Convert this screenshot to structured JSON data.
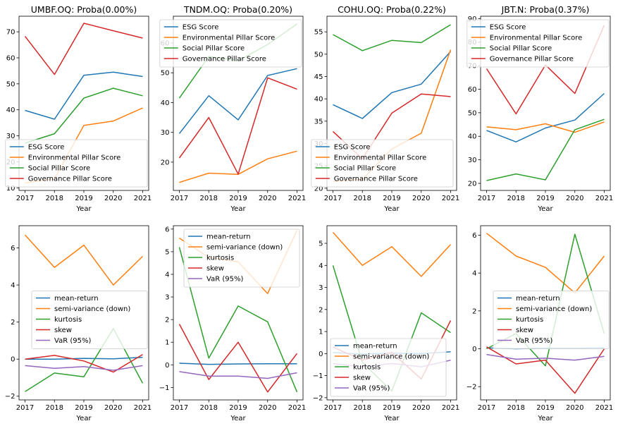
{
  "colors": {
    "blue": "#1f77b4",
    "orange": "#ff7f0e",
    "green": "#2ca02c",
    "red": "#d62728",
    "purple": "#9467bd"
  },
  "chart_data": [
    {
      "type": "line",
      "title": "UMBF.OQ: Proba(0.00%)",
      "xlabel": "Year",
      "ylabel": "",
      "x": [
        "2017",
        "2018",
        "2019",
        "2020",
        "2021"
      ],
      "yticks": [
        10,
        20,
        30,
        40,
        50,
        60,
        70
      ],
      "ylim": [
        9,
        76
      ],
      "legend": "lower left",
      "series": [
        {
          "name": "ESG Score",
          "color": "blue",
          "values": [
            39.8,
            36.4,
            53.3,
            54.5,
            52.8
          ]
        },
        {
          "name": "Environmental Pillar Score",
          "color": "orange",
          "values": [
            11.9,
            13.5,
            34.0,
            35.7,
            40.7
          ]
        },
        {
          "name": "Social Pillar Score",
          "color": "green",
          "values": [
            27.2,
            30.8,
            44.5,
            48.3,
            45.4
          ]
        },
        {
          "name": "Governance Pillar Score",
          "color": "red",
          "values": [
            68.3,
            53.6,
            73.3,
            70.4,
            67.6
          ]
        }
      ]
    },
    {
      "type": "line",
      "title": "TNDM.OQ: Proba(0.20%)",
      "xlabel": "Year",
      "ylabel": "",
      "x": [
        "2017",
        "2018",
        "2019",
        "2020",
        "2021"
      ],
      "yticks": [
        20,
        30,
        40,
        50,
        60
      ],
      "ylim": [
        10.5,
        69
      ],
      "legend": "upper left",
      "series": [
        {
          "name": "ESG Score",
          "color": "blue",
          "values": [
            29.6,
            42.3,
            34.2,
            49.1,
            51.4
          ]
        },
        {
          "name": "Environmental Pillar Score",
          "color": "orange",
          "values": [
            13.2,
            16.3,
            15.9,
            21.1,
            23.7
          ]
        },
        {
          "name": "Social Pillar Score",
          "color": "green",
          "values": [
            41.5,
            55.5,
            54.0,
            59.5,
            66.4
          ]
        },
        {
          "name": "Governance Pillar Score",
          "color": "red",
          "values": [
            21.4,
            35.0,
            16.0,
            48.3,
            44.5
          ]
        }
      ]
    },
    {
      "type": "line",
      "title": "COHU.OQ: Proba(0.22%)",
      "xlabel": "Year",
      "ylabel": "",
      "x": [
        "2017",
        "2018",
        "2019",
        "2020",
        "2021"
      ],
      "yticks": [
        20,
        25,
        30,
        35,
        40,
        45,
        50,
        55
      ],
      "ylim": [
        19.5,
        58.5
      ],
      "legend": "lower right",
      "series": [
        {
          "name": "ESG Score",
          "color": "blue",
          "values": [
            38.7,
            35.6,
            41.4,
            43.3,
            50.6
          ]
        },
        {
          "name": "Environmental Pillar Score",
          "color": "orange",
          "values": [
            21.5,
            22.0,
            28.8,
            32.3,
            51.0
          ]
        },
        {
          "name": "Social Pillar Score",
          "color": "green",
          "values": [
            54.4,
            50.8,
            53.1,
            52.6,
            56.6
          ]
        },
        {
          "name": "Governance Pillar Score",
          "color": "red",
          "values": [
            32.7,
            26.6,
            36.8,
            41.1,
            40.5
          ]
        }
      ]
    },
    {
      "type": "line",
      "title": "JBT.N: Proba(0.37%)",
      "xlabel": "Year",
      "ylabel": "",
      "x": [
        "2017",
        "2018",
        "2019",
        "2020",
        "2021"
      ],
      "yticks": [
        20,
        30,
        40,
        50,
        60,
        70,
        80,
        90
      ],
      "ylim": [
        17,
        91
      ],
      "legend": "upper left",
      "series": [
        {
          "name": "ESG Score",
          "color": "blue",
          "values": [
            42.5,
            37.6,
            43.5,
            46.9,
            58.2
          ]
        },
        {
          "name": "Environmental Pillar Score",
          "color": "orange",
          "values": [
            44.0,
            42.8,
            45.3,
            41.7,
            46.1
          ]
        },
        {
          "name": "Social Pillar Score",
          "color": "green",
          "values": [
            21.2,
            24.0,
            21.5,
            42.8,
            47.2
          ]
        },
        {
          "name": "Governance Pillar Score",
          "color": "red",
          "values": [
            68.7,
            49.5,
            70.3,
            58.2,
            87.2
          ]
        }
      ]
    },
    {
      "type": "line",
      "title": "",
      "xlabel": "Year",
      "ylabel": "",
      "x": [
        "2017",
        "2018",
        "2019",
        "2020",
        "2021"
      ],
      "yticks": [
        -2,
        0,
        2,
        4,
        6
      ],
      "ylim": [
        -2.2,
        7.2
      ],
      "legend": "center left",
      "series": [
        {
          "name": "mean-return",
          "color": "blue",
          "values": [
            0.0,
            0.0,
            0.04,
            0.02,
            0.1
          ]
        },
        {
          "name": "semi-variance (down)",
          "color": "orange",
          "values": [
            6.7,
            4.95,
            6.15,
            4.0,
            5.55
          ]
        },
        {
          "name": "kurtosis",
          "color": "green",
          "values": [
            -1.75,
            -0.75,
            -0.95,
            1.65,
            -1.3
          ]
        },
        {
          "name": "skew",
          "color": "red",
          "values": [
            0.0,
            0.2,
            -0.1,
            -0.7,
            0.25
          ]
        },
        {
          "name": "VaR (95%)",
          "color": "purple",
          "values": [
            -0.35,
            -0.5,
            -0.4,
            -0.6,
            -0.35
          ]
        }
      ]
    },
    {
      "type": "line",
      "title": "",
      "xlabel": "Year",
      "ylabel": "",
      "x": [
        "2017",
        "2018",
        "2019",
        "2020",
        "2021"
      ],
      "yticks": [
        -1,
        0,
        1,
        2,
        3,
        4,
        5,
        6
      ],
      "ylim": [
        -1.55,
        6.15
      ],
      "legend": "upper right",
      "series": [
        {
          "name": "mean-return",
          "color": "blue",
          "values": [
            0.07,
            0.02,
            0.04,
            0.05,
            0.05
          ]
        },
        {
          "name": "semi-variance (down)",
          "color": "orange",
          "values": [
            5.6,
            4.75,
            4.55,
            3.15,
            5.95
          ]
        },
        {
          "name": "kurtosis",
          "color": "green",
          "values": [
            5.2,
            0.3,
            2.6,
            1.9,
            -1.2
          ]
        },
        {
          "name": "skew",
          "color": "red",
          "values": [
            1.8,
            -0.65,
            1.0,
            -1.2,
            0.5
          ]
        },
        {
          "name": "VaR (95%)",
          "color": "purple",
          "values": [
            -0.3,
            -0.5,
            -0.5,
            -0.6,
            -0.35
          ]
        }
      ]
    },
    {
      "type": "line",
      "title": "",
      "xlabel": "Year",
      "ylabel": "",
      "x": [
        "2017",
        "2018",
        "2019",
        "2020",
        "2021"
      ],
      "yticks": [
        -2,
        -1,
        0,
        1,
        2,
        3,
        4,
        5
      ],
      "ylim": [
        -2.1,
        5.8
      ],
      "legend": "lower left",
      "series": [
        {
          "name": "mean-return",
          "color": "blue",
          "values": [
            0.05,
            -0.02,
            0.02,
            0.0,
            0.08
          ]
        },
        {
          "name": "semi-variance (down)",
          "color": "orange",
          "values": [
            5.5,
            4.0,
            4.85,
            3.5,
            4.95
          ]
        },
        {
          "name": "kurtosis",
          "color": "green",
          "values": [
            4.0,
            -0.4,
            -1.7,
            1.85,
            0.95
          ]
        },
        {
          "name": "skew",
          "color": "red",
          "values": [
            0.3,
            -0.3,
            0.05,
            -1.15,
            1.5
          ]
        },
        {
          "name": "VaR (95%)",
          "color": "purple",
          "values": [
            -0.45,
            -0.6,
            -0.45,
            -0.6,
            -0.3
          ]
        }
      ]
    },
    {
      "type": "line",
      "title": "",
      "xlabel": "Year",
      "ylabel": "",
      "x": [
        "2017",
        "2018",
        "2019",
        "2020",
        "2021"
      ],
      "yticks": [
        -2,
        0,
        2,
        4,
        6
      ],
      "ylim": [
        -2.7,
        6.5
      ],
      "legend": "center left",
      "series": [
        {
          "name": "mean-return",
          "color": "blue",
          "values": [
            0.05,
            0.0,
            0.03,
            0.03,
            0.05
          ]
        },
        {
          "name": "semi-variance (down)",
          "color": "orange",
          "values": [
            6.1,
            4.9,
            4.3,
            2.95,
            4.9
          ]
        },
        {
          "name": "kurtosis",
          "color": "green",
          "values": [
            0.0,
            0.8,
            -0.9,
            6.05,
            0.8
          ]
        },
        {
          "name": "skew",
          "color": "red",
          "values": [
            0.1,
            -0.8,
            -0.6,
            -2.35,
            0.0
          ]
        },
        {
          "name": "VaR (95%)",
          "color": "purple",
          "values": [
            -0.3,
            -0.55,
            -0.5,
            -0.6,
            -0.4
          ]
        }
      ]
    }
  ]
}
